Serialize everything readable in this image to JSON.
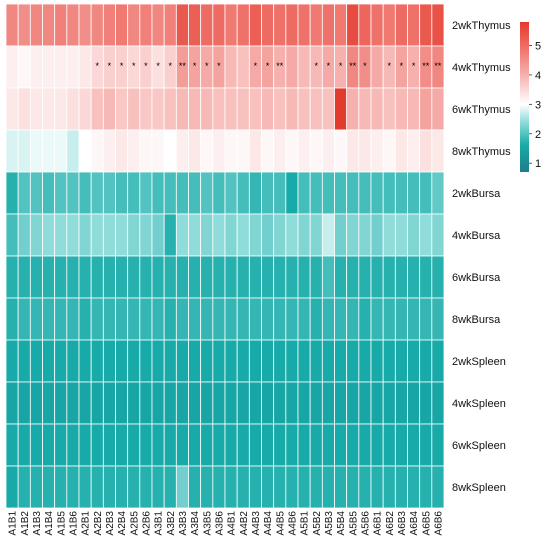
{
  "chart_data": {
    "type": "heatmap",
    "title": "",
    "xlabel": "",
    "ylabel": "",
    "rows": [
      "2wkThymus",
      "4wkThymus",
      "6wkThymus",
      "8wkThymus",
      "2wkBursa",
      "4wkBursa",
      "6wkBursa",
      "8wkBursa",
      "2wkSpleen",
      "4wkSpleen",
      "6wkSpleen",
      "8wkSpleen"
    ],
    "columns": [
      "A1B1",
      "A1B2",
      "A1B3",
      "A1B4",
      "A1B5",
      "A1B6",
      "A2B1",
      "A2B2",
      "A2B3",
      "A2B4",
      "A2B5",
      "A2B6",
      "A3B1",
      "A3B2",
      "A3B3",
      "A3B4",
      "A3B5",
      "A3B6",
      "A4B1",
      "A4B2",
      "A4B3",
      "A4B4",
      "A4B5",
      "A4B6",
      "A5B1",
      "A5B2",
      "A5B3",
      "A5B4",
      "A5B5",
      "A5B6",
      "A6B1",
      "A6B2",
      "A6B3",
      "A6B4",
      "A6B5",
      "A6B6"
    ],
    "values": [
      [
        4.6,
        4.5,
        4.6,
        4.6,
        4.7,
        4.6,
        4.5,
        4.6,
        4.7,
        4.8,
        4.6,
        4.7,
        4.6,
        4.7,
        5.3,
        5.2,
        5.0,
        5.0,
        4.8,
        4.9,
        5.2,
        5.0,
        4.9,
        5.0,
        4.9,
        4.8,
        4.9,
        4.8,
        5.5,
        5.1,
        4.9,
        4.8,
        5.0,
        4.9,
        5.3,
        5.4
      ],
      [
        3.2,
        3.1,
        3.2,
        3.2,
        3.2,
        3.2,
        3.3,
        3.5,
        3.6,
        3.6,
        3.5,
        3.6,
        3.4,
        3.6,
        4.3,
        4.2,
        4.1,
        4.2,
        3.9,
        3.8,
        4.1,
        4.2,
        4.0,
        4.1,
        3.9,
        3.9,
        4.1,
        4.0,
        4.6,
        4.5,
        4.1,
        3.9,
        4.2,
        4.0,
        4.5,
        4.6
      ],
      [
        3.3,
        3.4,
        3.3,
        3.3,
        3.3,
        3.4,
        3.5,
        3.8,
        3.9,
        3.7,
        3.8,
        3.7,
        3.7,
        3.8,
        3.9,
        3.9,
        3.9,
        3.8,
        3.8,
        3.8,
        3.8,
        3.9,
        3.8,
        3.9,
        3.8,
        3.8,
        3.8,
        5.8,
        4.0,
        3.9,
        3.9,
        3.8,
        3.9,
        3.9,
        4.2,
        4.1
      ],
      [
        2.8,
        2.8,
        2.9,
        2.9,
        2.9,
        2.7,
        3.0,
        3.1,
        3.2,
        3.3,
        3.2,
        3.1,
        3.1,
        3.0,
        3.2,
        3.3,
        3.1,
        3.2,
        3.1,
        3.1,
        3.3,
        3.1,
        3.2,
        3.1,
        3.2,
        3.1,
        3.2,
        3.1,
        3.3,
        3.3,
        3.2,
        3.1,
        3.3,
        3.2,
        3.4,
        3.3
      ],
      [
        1.7,
        2.0,
        2.0,
        1.9,
        2.0,
        2.0,
        1.9,
        2.0,
        2.0,
        1.9,
        1.9,
        2.0,
        1.9,
        1.9,
        1.9,
        1.9,
        2.0,
        1.9,
        2.0,
        1.9,
        1.8,
        1.9,
        1.9,
        1.6,
        1.9,
        1.9,
        1.9,
        1.9,
        1.9,
        1.9,
        1.9,
        1.9,
        1.9,
        1.9,
        1.9,
        2.1
      ],
      [
        1.9,
        2.2,
        2.3,
        2.4,
        2.4,
        2.4,
        2.3,
        2.4,
        2.4,
        2.4,
        2.3,
        2.3,
        2.2,
        1.7,
        2.4,
        2.4,
        2.3,
        2.4,
        2.3,
        2.4,
        2.3,
        2.2,
        2.3,
        2.4,
        2.3,
        2.3,
        2.7,
        2.2,
        2.3,
        2.3,
        2.2,
        2.4,
        2.4,
        2.3,
        2.4,
        2.3
      ],
      [
        1.7,
        1.7,
        1.7,
        1.7,
        1.7,
        1.7,
        1.7,
        1.7,
        1.7,
        1.7,
        1.7,
        1.7,
        1.7,
        1.7,
        1.7,
        1.7,
        1.7,
        1.7,
        1.7,
        1.7,
        1.7,
        1.7,
        1.7,
        1.7,
        1.7,
        1.7,
        1.9,
        1.7,
        1.7,
        1.7,
        1.7,
        1.7,
        1.7,
        1.7,
        1.7,
        1.7
      ],
      [
        1.7,
        1.8,
        1.8,
        1.8,
        1.8,
        1.8,
        1.7,
        1.8,
        1.8,
        1.8,
        1.8,
        1.8,
        1.8,
        1.7,
        1.8,
        1.8,
        1.8,
        1.8,
        1.8,
        1.8,
        1.8,
        1.8,
        1.8,
        1.8,
        1.8,
        1.7,
        1.8,
        1.8,
        1.8,
        1.7,
        1.8,
        1.8,
        1.8,
        1.8,
        1.8,
        1.8
      ],
      [
        1.6,
        1.6,
        1.6,
        1.6,
        1.6,
        1.6,
        1.6,
        1.6,
        1.6,
        1.6,
        1.6,
        1.6,
        1.6,
        1.6,
        1.6,
        1.6,
        1.6,
        1.6,
        1.6,
        1.6,
        1.6,
        1.6,
        1.6,
        1.6,
        1.6,
        1.6,
        1.6,
        1.6,
        1.6,
        1.6,
        1.6,
        1.6,
        1.6,
        1.6,
        1.6,
        1.6
      ],
      [
        1.5,
        1.5,
        1.5,
        1.5,
        1.5,
        1.5,
        1.5,
        1.5,
        1.5,
        1.5,
        1.5,
        1.5,
        1.5,
        1.5,
        1.5,
        1.5,
        1.5,
        1.5,
        1.5,
        1.5,
        1.5,
        1.5,
        1.5,
        1.5,
        1.5,
        1.5,
        1.5,
        1.5,
        1.5,
        1.5,
        1.5,
        1.5,
        1.5,
        1.5,
        1.5,
        1.5
      ],
      [
        1.6,
        1.6,
        1.6,
        1.6,
        1.6,
        1.6,
        1.6,
        1.6,
        1.6,
        1.6,
        1.6,
        1.6,
        1.6,
        1.6,
        1.6,
        1.6,
        1.6,
        1.6,
        1.6,
        1.6,
        1.6,
        1.6,
        1.6,
        1.6,
        1.6,
        1.6,
        1.6,
        1.6,
        1.6,
        1.6,
        1.6,
        1.6,
        1.6,
        1.6,
        1.6,
        1.6
      ],
      [
        1.6,
        1.7,
        1.7,
        1.7,
        1.7,
        1.7,
        1.7,
        1.7,
        1.7,
        1.7,
        1.7,
        1.7,
        1.7,
        1.7,
        2.2,
        1.7,
        1.7,
        1.7,
        1.7,
        1.7,
        1.7,
        1.7,
        1.7,
        1.7,
        1.7,
        1.7,
        1.7,
        1.7,
        1.7,
        1.7,
        1.7,
        1.7,
        1.7,
        1.7,
        1.7,
        1.7
      ]
    ],
    "annotations": {
      "marker": "*",
      "row": "4wkThymus",
      "columns": [
        "A2B2",
        "A2B3",
        "A2B4",
        "A2B5",
        "A2B6",
        "A3B1",
        "A3B2",
        "A3B3",
        "A3B4",
        "A3B5",
        "A3B6",
        "A4B3",
        "A4B4",
        "A4B5",
        "A5B2",
        "A5B3",
        "A5B4",
        "A5B5",
        "A5B6",
        "A6B2",
        "A6B3",
        "A6B4",
        "A6B5",
        "A6B6"
      ],
      "double_columns": [
        "A3B3",
        "A4B5",
        "A5B5",
        "A6B5",
        "A6B6"
      ]
    },
    "colorbar": {
      "min": 0.7,
      "max": 5.8,
      "ticks": [
        "1",
        "2",
        "3",
        "4",
        "5"
      ],
      "placement": "right",
      "colors": [
        {
          "value": 0.7,
          "color": "#1e7d8a"
        },
        {
          "value": 1.6,
          "color": "#17aaa8"
        },
        {
          "value": 2.5,
          "color": "#9fe2e0"
        },
        {
          "value": 3.0,
          "color": "#ffffff"
        },
        {
          "value": 4.0,
          "color": "#f6b1ae"
        },
        {
          "value": 5.0,
          "color": "#ee6b63"
        },
        {
          "value": 5.8,
          "color": "#e23a2c"
        }
      ]
    },
    "grid": true
  }
}
